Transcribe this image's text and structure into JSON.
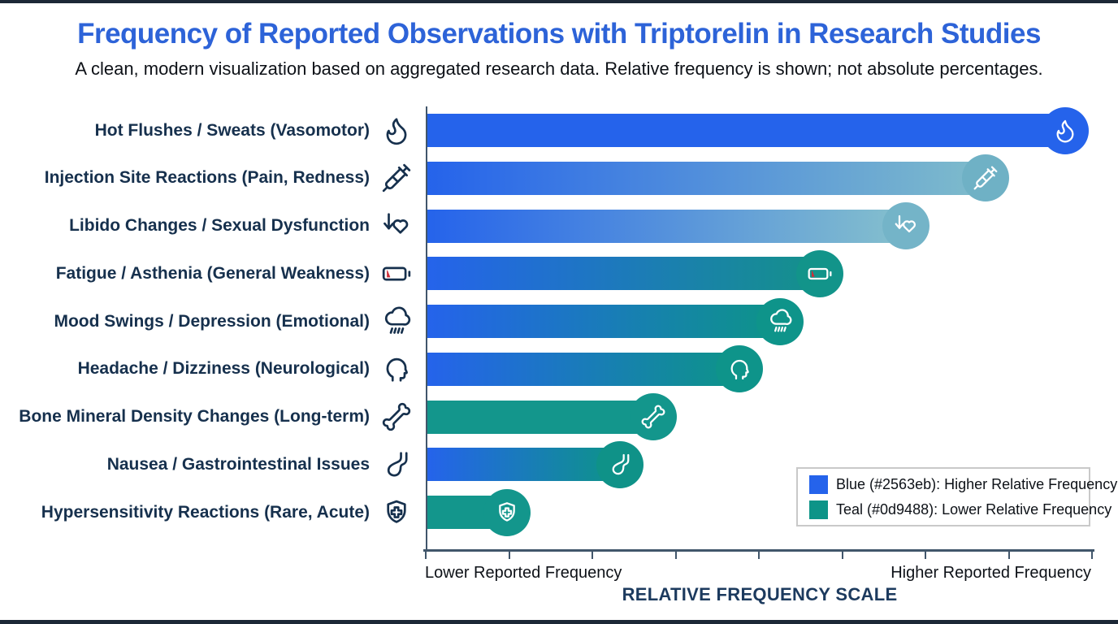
{
  "header": {
    "title": "Frequency of Reported Observations with Triptorelin in Research Studies",
    "subtitle": "A clean, modern visualization based on aggregated research data. Relative frequency is shown; not absolute percentages."
  },
  "colors": {
    "higher_frequency_blue": "#2563eb",
    "lower_frequency_teal": "#0d9488",
    "title_blue": "#2d63d8",
    "label_navy": "#16304d",
    "battery_warning_red": "#cc2f3b"
  },
  "chart_data": {
    "type": "bar",
    "orientation": "horizontal",
    "title": "Frequency of Reported Observations with Triptorelin in Research Studies",
    "xlabel": "RELATIVE FREQUENCY SCALE",
    "ylabel": "",
    "xlim": [
      0,
      100
    ],
    "x_axis_ticks": 9,
    "grid": false,
    "legend_position": "bottom-right",
    "axis": {
      "left_label": "Lower Reported Frequency",
      "right_label": "Higher Reported Frequency",
      "scale_label": "RELATIVE FREQUENCY SCALE"
    },
    "categories": [
      "Hot Flushes / Sweats (Vasomotor)",
      "Injection Site Reactions (Pain, Redness)",
      "Libido Changes / Sexual Dysfunction",
      "Fatigue / Asthenia (General Weakness)",
      "Mood Swings / Depression (Emotional)",
      "Headache / Dizziness (Neurological)",
      "Bone Mineral Density Changes (Long-term)",
      "Nausea / Gastrointestinal Issues",
      "Hypersensitivity Reactions (Rare, Acute)"
    ],
    "values": [
      96,
      84,
      72,
      59,
      53,
      47,
      34,
      29,
      12
    ],
    "icons": [
      "flame-icon",
      "syringe-icon",
      "heart-down-icon",
      "battery-low-icon",
      "rain-cloud-icon",
      "head-icon",
      "bone-icon",
      "stomach-icon",
      "shield-cross-icon"
    ],
    "bar_styles": [
      {
        "from": "#2563eb",
        "to": "#2563eb",
        "badge": "#2563eb"
      },
      {
        "from": "#2563eb",
        "to": "#7fbccb",
        "badge": "#6fb1c5"
      },
      {
        "from": "#2563eb",
        "to": "#85c0cd",
        "badge": "#74b4c8"
      },
      {
        "from": "#2563eb",
        "to": "#14918a",
        "badge": "#12948a"
      },
      {
        "from": "#2563eb",
        "to": "#0d9488",
        "badge": "#0e948a"
      },
      {
        "from": "#2563eb",
        "to": "#0d9488",
        "badge": "#0e948a"
      },
      {
        "from": "#13968c",
        "to": "#13968c",
        "badge": "#13968c"
      },
      {
        "from": "#2563eb",
        "to": "#0d9488",
        "badge": "#0f9288"
      },
      {
        "from": "#13968c",
        "to": "#13968c",
        "badge": "#13968c"
      }
    ]
  },
  "legend": {
    "items": [
      {
        "swatch": "#2563eb",
        "label": "Blue (#2563eb): Higher Relative Frequency"
      },
      {
        "swatch": "#0d9488",
        "label": "Teal (#0d9488): Lower Relative Frequency"
      }
    ]
  }
}
